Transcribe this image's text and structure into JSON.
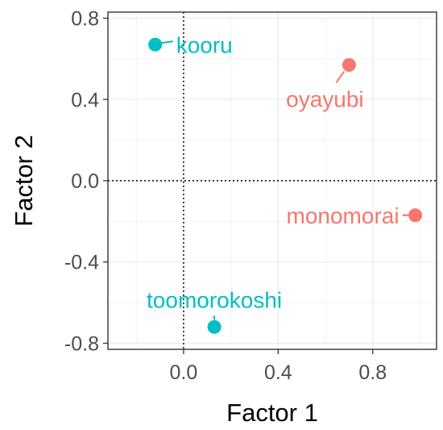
{
  "chart_data": {
    "type": "scatter",
    "xlabel": "Factor 1",
    "ylabel": "Factor 2",
    "xlim": [
      -0.32,
      1.07
    ],
    "ylim": [
      -0.83,
      0.83
    ],
    "x_ticks": [
      {
        "value": 0.0,
        "label": "0.0"
      },
      {
        "value": 0.4,
        "label": "0.4"
      },
      {
        "value": 0.8,
        "label": "0.8"
      }
    ],
    "y_ticks": [
      {
        "value": 0.8,
        "label": "0.8"
      },
      {
        "value": 0.4,
        "label": "0.4"
      },
      {
        "value": 0.0,
        "label": "0.0"
      },
      {
        "value": -0.4,
        "label": "-0.4"
      },
      {
        "value": -0.8,
        "label": "-0.8"
      }
    ],
    "reference_lines": {
      "x": 0,
      "y": 0,
      "style": "dotted"
    },
    "grid": true,
    "legend": "none",
    "points": [
      {
        "label": "kooru",
        "x": -0.12,
        "y": 0.67,
        "color": "#00BFC4"
      },
      {
        "label": "oyayubi",
        "x": 0.7,
        "y": 0.57,
        "color": "#F8766D"
      },
      {
        "label": "monomorai",
        "x": 0.98,
        "y": -0.17,
        "color": "#F8766D"
      },
      {
        "label": "toomorokoshi",
        "x": 0.13,
        "y": -0.72,
        "color": "#00BFC4"
      }
    ]
  }
}
